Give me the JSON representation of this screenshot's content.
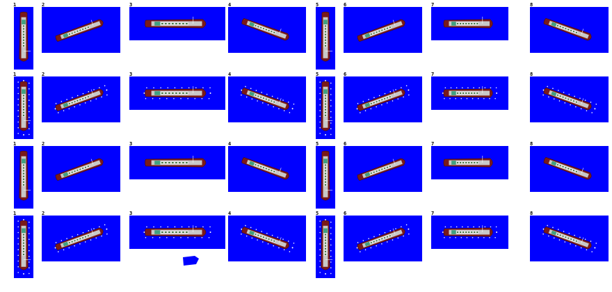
{
  "sprite_sheet": {
    "background_color": "#ffffff",
    "water_color": "#0000ff",
    "hull_color": "#7a1a1a",
    "deck_color": "#c8c8c8",
    "cabin_color": "#e0e0e0",
    "window_color": "#2a6a2a",
    "funnel_color": "#40a080",
    "foam_color": "#ffffff",
    "row_count": 4,
    "column_labels": [
      "1",
      "2",
      "3",
      "4",
      "5",
      "6",
      "7",
      "8"
    ],
    "rows": [
      {
        "variant": "calm"
      },
      {
        "variant": "wake"
      },
      {
        "variant": "calm"
      },
      {
        "variant": "wake"
      }
    ],
    "stray_sprite": {
      "name": "small-blue-fragment-icon",
      "color": "#0000ff"
    }
  }
}
